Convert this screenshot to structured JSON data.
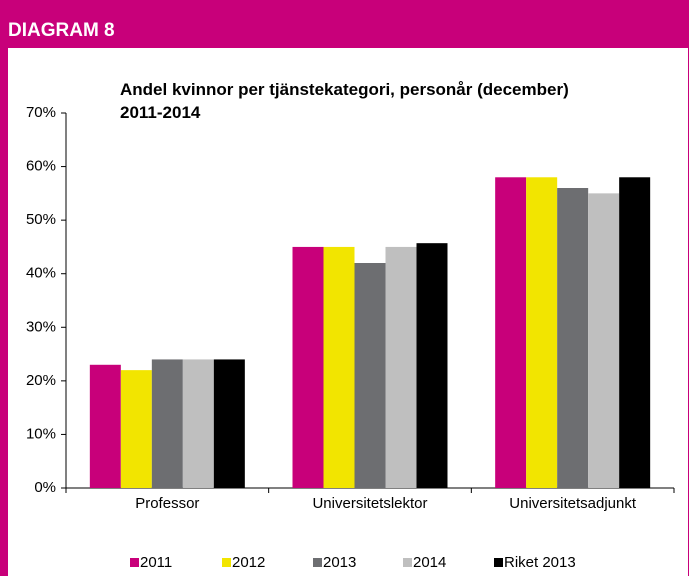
{
  "header": "DIAGRAM 8",
  "chart_data": {
    "type": "bar",
    "title": "Andel kvinnor per tjänstekategori, personår (december) 2011-2014",
    "categories": [
      "Professor",
      "Universitetslektor",
      "Universitetsadjunkt"
    ],
    "series": [
      {
        "name": "2011",
        "color": "#c8007a",
        "values": [
          23,
          45,
          58
        ]
      },
      {
        "name": "2012",
        "color": "#f2e500",
        "values": [
          22,
          45,
          58
        ]
      },
      {
        "name": "2013",
        "color": "#6d6e71",
        "values": [
          24,
          42,
          56
        ]
      },
      {
        "name": "2014",
        "color": "#bfbfbf",
        "values": [
          24,
          45,
          55
        ]
      },
      {
        "name": "Riket 2013",
        "color": "#000000",
        "values": [
          24,
          45.7,
          58
        ]
      }
    ],
    "ylim": [
      0,
      70
    ],
    "yticks": [
      {
        "value": 0,
        "label": "0%"
      },
      {
        "value": 10,
        "label": "10%"
      },
      {
        "value": 20,
        "label": "20%"
      },
      {
        "value": 30,
        "label": "30%"
      },
      {
        "value": 40,
        "label": "40%"
      },
      {
        "value": 50,
        "label": "50%"
      },
      {
        "value": 60,
        "label": "60%"
      },
      {
        "value": 70,
        "label": "70%"
      }
    ],
    "grid": false,
    "legend": "bottom"
  }
}
